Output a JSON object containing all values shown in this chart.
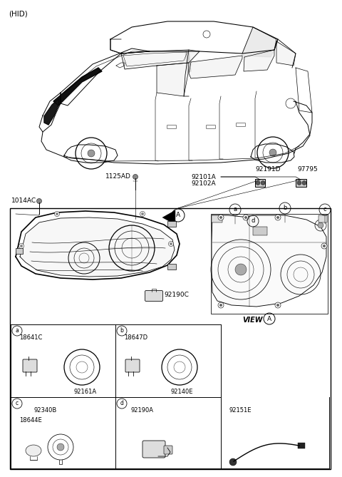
{
  "bg": "#ffffff",
  "lc": "#000000",
  "labels": {
    "hid": "(HID)",
    "1125AD": "1125AD",
    "92101A": "92101A",
    "92102A": "92102A",
    "92191D": "92191D",
    "97795": "97795",
    "1014AC": "1014AC",
    "92190C": "92190C",
    "18641C": "18641C",
    "92161A": "92161A",
    "18647D": "18647D",
    "92140E": "92140E",
    "92340B": "92340B",
    "18644E": "18644E",
    "92190A": "92190A",
    "92151E": "92151E",
    "VIEW": "VIEW"
  },
  "lw": 0.7,
  "fs": 6.5
}
